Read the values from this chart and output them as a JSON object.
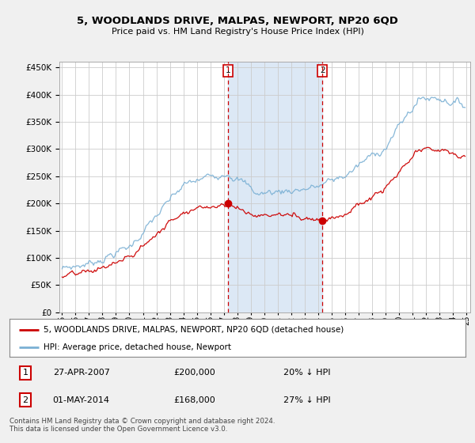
{
  "title": "5, WOODLANDS DRIVE, MALPAS, NEWPORT, NP20 6QD",
  "subtitle": "Price paid vs. HM Land Registry's House Price Index (HPI)",
  "property_label": "5, WOODLANDS DRIVE, MALPAS, NEWPORT, NP20 6QD (detached house)",
  "hpi_label": "HPI: Average price, detached house, Newport",
  "footnote": "Contains HM Land Registry data © Crown copyright and database right 2024.\nThis data is licensed under the Open Government Licence v3.0.",
  "transaction1": {
    "num": "1",
    "date": "27-APR-2007",
    "price": "£200,000",
    "hpi": "20% ↓ HPI"
  },
  "transaction2": {
    "num": "2",
    "date": "01-MAY-2014",
    "price": "£168,000",
    "hpi": "27% ↓ HPI"
  },
  "marker1_x": 2007.32,
  "marker1_y": 200000,
  "marker2_x": 2014.33,
  "marker2_y": 168000,
  "vline1_x": 2007.32,
  "vline2_x": 2014.33,
  "ylim": [
    0,
    460000
  ],
  "xlim": [
    1994.8,
    2025.3
  ],
  "fig_bg": "#f0f0f0",
  "plot_bg": "#ffffff",
  "grid_color": "#cccccc",
  "red_color": "#cc0000",
  "blue_color": "#7ab0d4",
  "vline_color": "#cc0000",
  "highlight_color": "#dce8f5"
}
